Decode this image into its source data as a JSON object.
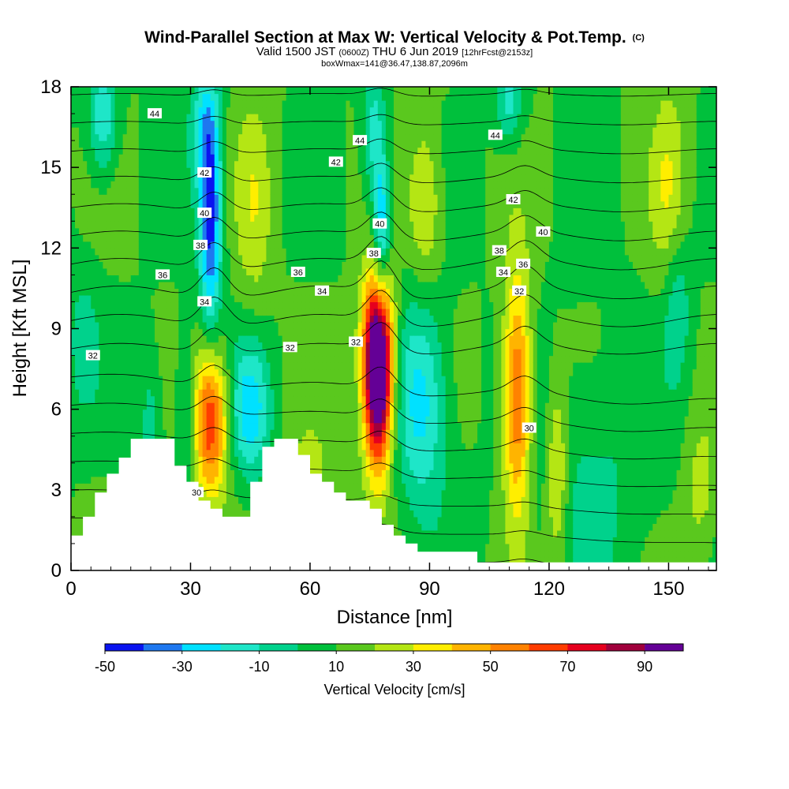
{
  "header": {
    "title": "Wind-Parallel Section at Max W: Vertical Velocity & Pot.Temp.",
    "copyright": "(C)",
    "valid_prefix": "Valid 1500 JST",
    "valid_z": "(0600Z)",
    "valid_date": "THU 6 Jun 2019",
    "forecast": "[12hrFcst@2153z]",
    "boxwmax": "boxWmax=141@36.47,138.87,2096m"
  },
  "chart_data": {
    "type": "heatmap",
    "title": "Wind-Parallel Section at Max W: Vertical Velocity & Pot.Temp.",
    "xlabel": "Distance [nm]",
    "ylabel": "Height [Kft MSL]",
    "xlim": [
      0,
      162
    ],
    "ylim": [
      0,
      18
    ],
    "x_ticks": [
      0,
      30,
      60,
      90,
      120,
      150
    ],
    "y_ticks": [
      0,
      3,
      6,
      9,
      12,
      15,
      18
    ],
    "colorbar": {
      "title": "Vertical Velocity [cm/s]",
      "boundaries": [
        -50,
        -40,
        -30,
        -20,
        -10,
        0,
        10,
        20,
        30,
        40,
        50,
        60,
        70,
        80,
        90
      ],
      "tick_labels": [
        "-50",
        "-30",
        "-10",
        "10",
        "30",
        "50",
        "70",
        "90"
      ],
      "colors": [
        "#0a14f0",
        "#1e78f0",
        "#00e1ff",
        "#1ee6c8",
        "#00d28c",
        "#00c03c",
        "#5ac81e",
        "#b4e614",
        "#ffee00",
        "#ffb400",
        "#ff8200",
        "#ff3c00",
        "#e6001e",
        "#a0003c",
        "#640096"
      ]
    },
    "background_level": 10,
    "velocity_features": [
      {
        "x": 8,
        "y": 16.8,
        "sx": 2.5,
        "sy": 1.5,
        "w": -30
      },
      {
        "x": 35,
        "y": 13.2,
        "sx": 2.0,
        "sy": 3.2,
        "w": -55
      },
      {
        "x": 33,
        "y": 16.5,
        "sx": 2.5,
        "sy": 1.5,
        "w": -20
      },
      {
        "x": 46,
        "y": 13.5,
        "sx": 3.2,
        "sy": 3.0,
        "w": 16
      },
      {
        "x": 35,
        "y": 5.6,
        "sx": 3.0,
        "sy": 2.0,
        "w": 60
      },
      {
        "x": 29,
        "y": 6.0,
        "sx": 2.0,
        "sy": 2.2,
        "w": -18
      },
      {
        "x": 45,
        "y": 6.0,
        "sx": 3.5,
        "sy": 1.8,
        "w": -35
      },
      {
        "x": 77,
        "y": 6.8,
        "sx": 2.5,
        "sy": 2.2,
        "w": 100
      },
      {
        "x": 77,
        "y": 9.0,
        "sx": 2.8,
        "sy": 1.8,
        "w": 45
      },
      {
        "x": 88,
        "y": 6.3,
        "sx": 4.5,
        "sy": 2.8,
        "w": -35
      },
      {
        "x": 76,
        "y": 16.3,
        "sx": 2.0,
        "sy": 1.8,
        "w": -25
      },
      {
        "x": 78,
        "y": 12.8,
        "sx": 1.5,
        "sy": 2.0,
        "w": -40
      },
      {
        "x": 89,
        "y": 13.5,
        "sx": 3.0,
        "sy": 2.2,
        "w": 22
      },
      {
        "x": 112,
        "y": 6.5,
        "sx": 2.5,
        "sy": 3.2,
        "w": 55
      },
      {
        "x": 122,
        "y": 3.5,
        "sx": 2.0,
        "sy": 2.5,
        "w": 28
      },
      {
        "x": 110,
        "y": 17.5,
        "sx": 2.5,
        "sy": 1.2,
        "w": -25
      },
      {
        "x": 130,
        "y": 3.5,
        "sx": 12.0,
        "sy": 3.5,
        "w": -12
      },
      {
        "x": 152,
        "y": 10.0,
        "sx": 2.5,
        "sy": 2.0,
        "w": -20
      },
      {
        "x": 158,
        "y": 3.0,
        "sx": 3.0,
        "sy": 2.0,
        "w": 15
      },
      {
        "x": 150,
        "y": 14.0,
        "sx": 3.0,
        "sy": 3.0,
        "w": 18
      },
      {
        "x": 20,
        "y": 5.5,
        "sx": 2.0,
        "sy": 2.0,
        "w": -15
      },
      {
        "x": 3,
        "y": 8.5,
        "sx": 3.0,
        "sy": 2.0,
        "w": -14
      },
      {
        "x": 60,
        "y": 3.2,
        "sx": 4.0,
        "sy": 1.5,
        "w": 15
      }
    ],
    "terrain": [
      [
        0,
        1.3
      ],
      [
        3,
        1.3
      ],
      [
        3,
        2.0
      ],
      [
        6,
        2.0
      ],
      [
        6,
        2.9
      ],
      [
        9,
        2.9
      ],
      [
        9,
        3.6
      ],
      [
        12,
        3.6
      ],
      [
        12,
        4.2
      ],
      [
        15,
        4.2
      ],
      [
        15,
        4.9
      ],
      [
        26,
        4.9
      ],
      [
        26,
        3.9
      ],
      [
        29,
        3.9
      ],
      [
        29,
        3.3
      ],
      [
        32,
        3.3
      ],
      [
        32,
        2.6
      ],
      [
        35,
        2.6
      ],
      [
        35,
        2.3
      ],
      [
        38,
        2.3
      ],
      [
        38,
        2.0
      ],
      [
        45,
        2.0
      ],
      [
        45,
        3.3
      ],
      [
        48,
        3.3
      ],
      [
        48,
        4.6
      ],
      [
        51,
        4.6
      ],
      [
        51,
        4.9
      ],
      [
        57,
        4.9
      ],
      [
        57,
        4.3
      ],
      [
        60,
        4.3
      ],
      [
        60,
        3.6
      ],
      [
        63,
        3.6
      ],
      [
        63,
        3.3
      ],
      [
        66,
        3.3
      ],
      [
        66,
        2.9
      ],
      [
        69,
        2.9
      ],
      [
        69,
        2.6
      ],
      [
        75,
        2.6
      ],
      [
        75,
        2.3
      ],
      [
        78,
        2.3
      ],
      [
        78,
        1.7
      ],
      [
        81,
        1.7
      ],
      [
        81,
        1.3
      ],
      [
        84,
        1.3
      ],
      [
        84,
        1.0
      ],
      [
        87,
        1.0
      ],
      [
        87,
        0.7
      ],
      [
        102,
        0.7
      ],
      [
        102,
        0.3
      ],
      [
        162,
        0.3
      ]
    ],
    "theta_levels": [
      30,
      31,
      32,
      33,
      34,
      35,
      36,
      37,
      38,
      39,
      40,
      41,
      42,
      43,
      44,
      45,
      46
    ],
    "contour_labels": [
      {
        "text": "44",
        "x": 21,
        "y": 17.0
      },
      {
        "text": "42",
        "x": 33.5,
        "y": 14.8
      },
      {
        "text": "40",
        "x": 33.5,
        "y": 13.3
      },
      {
        "text": "38",
        "x": 32.5,
        "y": 12.1
      },
      {
        "text": "36",
        "x": 23,
        "y": 11.0
      },
      {
        "text": "34",
        "x": 33.5,
        "y": 10.0
      },
      {
        "text": "32",
        "x": 5.5,
        "y": 8.0
      },
      {
        "text": "30",
        "x": 31.5,
        "y": 2.9
      },
      {
        "text": "44",
        "x": 72.5,
        "y": 16.0
      },
      {
        "text": "42",
        "x": 66.5,
        "y": 15.2
      },
      {
        "text": "40",
        "x": 77.5,
        "y": 12.9
      },
      {
        "text": "38",
        "x": 76,
        "y": 11.8
      },
      {
        "text": "36",
        "x": 57,
        "y": 11.1
      },
      {
        "text": "34",
        "x": 63,
        "y": 10.4
      },
      {
        "text": "32",
        "x": 55,
        "y": 8.3
      },
      {
        "text": "32",
        "x": 71.5,
        "y": 8.5
      },
      {
        "text": "44",
        "x": 106.5,
        "y": 16.2
      },
      {
        "text": "42",
        "x": 111,
        "y": 13.8
      },
      {
        "text": "40",
        "x": 118.5,
        "y": 12.6
      },
      {
        "text": "38",
        "x": 107.5,
        "y": 11.9
      },
      {
        "text": "36",
        "x": 113.5,
        "y": 11.4
      },
      {
        "text": "34",
        "x": 108.5,
        "y": 11.1
      },
      {
        "text": "32",
        "x": 112.5,
        "y": 10.4
      },
      {
        "text": "30",
        "x": 115,
        "y": 5.3
      }
    ]
  }
}
